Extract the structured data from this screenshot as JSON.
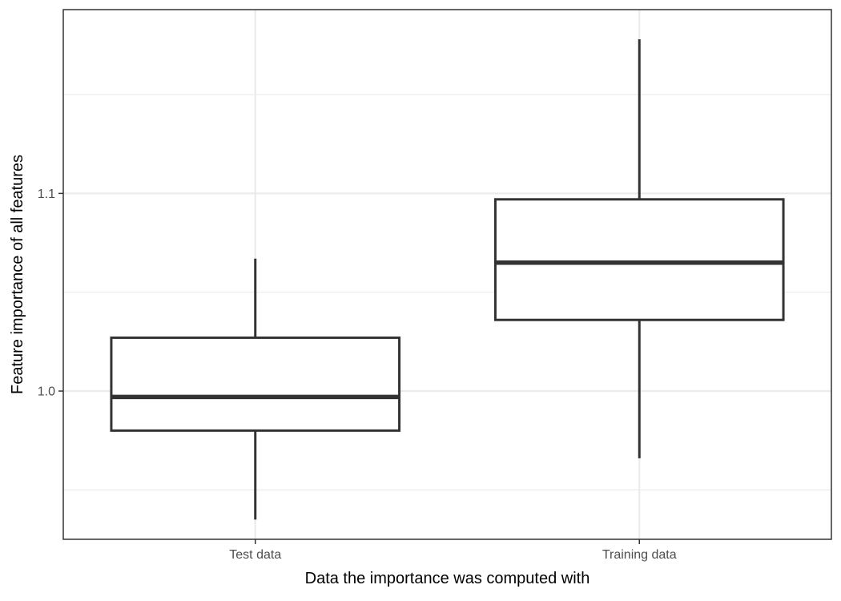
{
  "chart_data": {
    "type": "box",
    "title": "",
    "xlabel": "Data the importance was computed with",
    "ylabel": "Feature importance of all features",
    "categories": [
      "Test data",
      "Training data"
    ],
    "boxes": [
      {
        "category": "Test data",
        "min": 0.935,
        "q1": 0.98,
        "median": 0.997,
        "q3": 1.027,
        "max": 1.067
      },
      {
        "category": "Training data",
        "min": 0.966,
        "q1": 1.036,
        "median": 1.065,
        "q3": 1.097,
        "max": 1.178
      }
    ],
    "ylim": [
      0.925,
      1.193
    ],
    "yticks": [
      1.0,
      1.1
    ],
    "ytick_labels": [
      "1.0",
      "1.1"
    ],
    "y_minor_gridlines": [
      0.95,
      1.05,
      1.15
    ],
    "grid": true,
    "theme": "bw",
    "colors": {
      "box_stroke": "#333333",
      "grid": "#ebebeb",
      "panel_border": "#333333",
      "tick_text": "#4d4d4d",
      "title_text": "#000000"
    }
  }
}
